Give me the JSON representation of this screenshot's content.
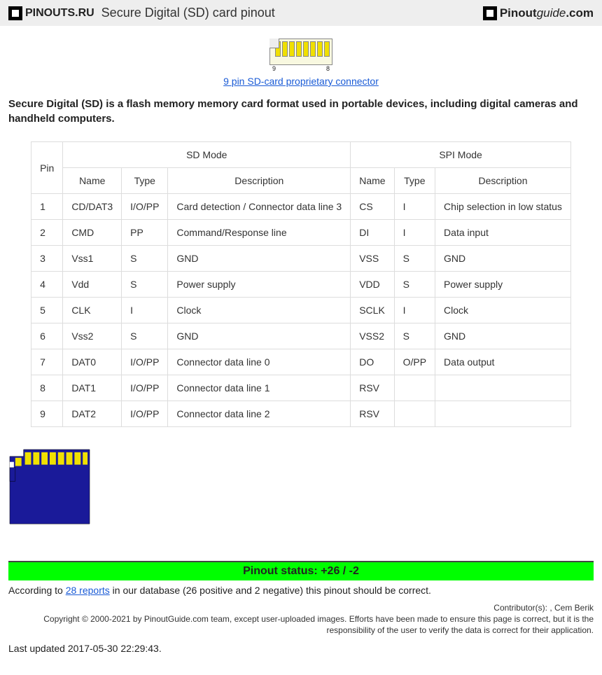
{
  "header": {
    "logo_left": "PINOUTS.RU",
    "title": "Secure Digital (SD) card pinout",
    "logo_right_a": "Pinout",
    "logo_right_b": "guide",
    "logo_right_c": ".com"
  },
  "connector": {
    "link_text": "9 pin SD-card proprietary connector",
    "pin_left": "9",
    "pin_right": "8"
  },
  "intro": "Secure Digital (SD) is a flash memory memory card format used in portable devices, including digital cameras and handheld computers.",
  "table": {
    "col_pin": "Pin",
    "group_sd": "SD Mode",
    "group_spi": "SPI Mode",
    "col_name": "Name",
    "col_type": "Type",
    "col_desc": "Description",
    "rows": [
      {
        "pin": "1",
        "sd_name": "CD/DAT3",
        "sd_type": "I/O/PP",
        "sd_desc": "Card detection / Connector data line 3",
        "spi_name": "CS",
        "spi_type": "I",
        "spi_desc": "Chip selection in low status"
      },
      {
        "pin": "2",
        "sd_name": "CMD",
        "sd_type": "PP",
        "sd_desc": "Command/Response line",
        "spi_name": "DI",
        "spi_type": "I",
        "spi_desc": "Data input"
      },
      {
        "pin": "3",
        "sd_name": "Vss1",
        "sd_type": "S",
        "sd_desc": "GND",
        "spi_name": "VSS",
        "spi_type": "S",
        "spi_desc": "GND"
      },
      {
        "pin": "4",
        "sd_name": "Vdd",
        "sd_type": "S",
        "sd_desc": "Power supply",
        "spi_name": "VDD",
        "spi_type": "S",
        "spi_desc": "Power supply"
      },
      {
        "pin": "5",
        "sd_name": "CLK",
        "sd_type": "I",
        "sd_desc": "Clock",
        "spi_name": "SCLK",
        "spi_type": "I",
        "spi_desc": "Clock"
      },
      {
        "pin": "6",
        "sd_name": "Vss2",
        "sd_type": "S",
        "sd_desc": "GND",
        "spi_name": "VSS2",
        "spi_type": "S",
        "spi_desc": "GND"
      },
      {
        "pin": "7",
        "sd_name": "DAT0",
        "sd_type": "I/O/PP",
        "sd_desc": "Connector data line 0",
        "spi_name": "DO",
        "spi_type": "O/PP",
        "spi_desc": "Data output"
      },
      {
        "pin": "8",
        "sd_name": "DAT1",
        "sd_type": "I/O/PP",
        "sd_desc": "Connector data line 1",
        "spi_name": "RSV",
        "spi_type": "",
        "spi_desc": ""
      },
      {
        "pin": "9",
        "sd_name": "DAT2",
        "sd_type": "I/O/PP",
        "sd_desc": "Connector data line 2",
        "spi_name": "RSV",
        "spi_type": "",
        "spi_desc": ""
      }
    ]
  },
  "status": {
    "bar_text": "Pinout status: +26 / -2",
    "text_prefix": "According to ",
    "link": "28 reports",
    "text_suffix": " in our database (26 positive and 2 negative) this pinout should be correct."
  },
  "contrib": "Contributor(s): , Cem Berik",
  "copyright": "Copyright © 2000-2021 by PinoutGuide.com team, except user-uploaded images. Efforts have been made to ensure this page is correct, but it is the responsibility of the user to verify the data is correct for their application.",
  "updated": "Last updated 2017-05-30 22:29:43.",
  "colors": {
    "header_bg": "#eeeeee",
    "link": "#1a5bd6",
    "status_bg": "#00ff00",
    "sd_body": "#1a1a99",
    "sd_pin": "#f0e000",
    "table_border": "#dddddd"
  }
}
